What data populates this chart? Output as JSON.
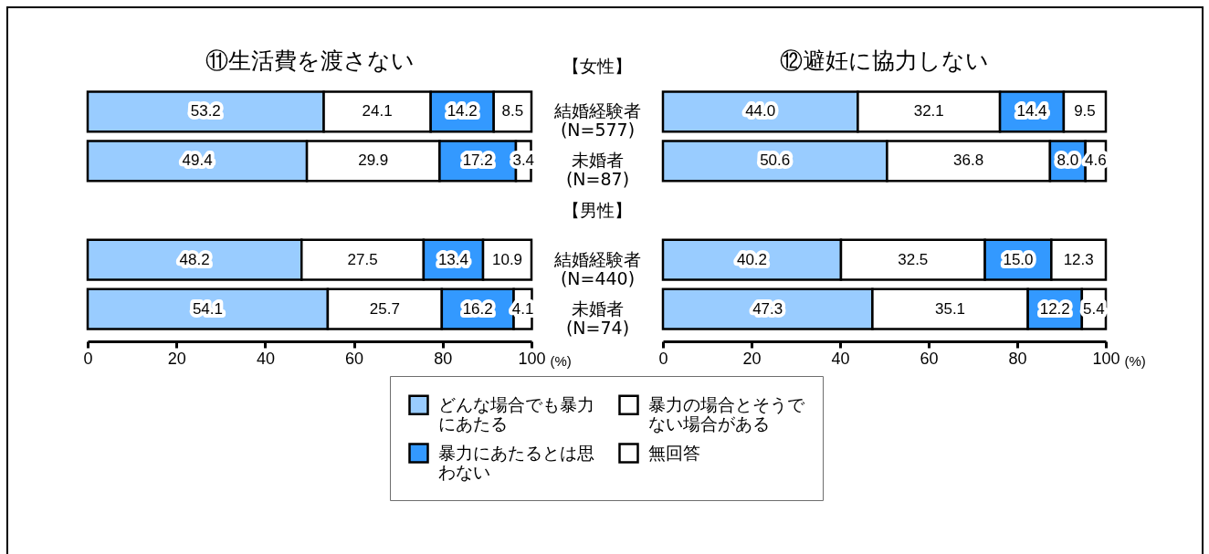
{
  "chart_data": [
    {
      "type": "bar",
      "orientation": "horizontal",
      "stacked": true,
      "title": "⑪生活費を渡さない",
      "categories": [
        "結婚経験者\n(N=577)",
        "未婚者\n(N=87)",
        null,
        "結婚経験者\n(N=440)",
        "未婚者\n(N=74)"
      ],
      "series": [
        {
          "name": "どんな場合でも暴力にあたる",
          "color": "#99ccff",
          "values": [
            53.2,
            49.4,
            null,
            48.2,
            54.1
          ],
          "value_labels": [
            "53.2",
            "49.4",
            null,
            "48.2",
            "54.1"
          ]
        },
        {
          "name": "暴力の場合とそうでない場合がある",
          "color": "#ffffff",
          "values": [
            24.1,
            29.9,
            null,
            27.5,
            25.7
          ],
          "value_labels": [
            "24.1",
            "29.9",
            null,
            "27.5",
            "25.7"
          ]
        },
        {
          "name": "暴力にあたるとは思わない",
          "color": "#3399ff",
          "values": [
            14.2,
            17.2,
            null,
            13.4,
            16.2
          ],
          "value_labels": [
            "14.2",
            "17.2",
            null,
            "13.4",
            "16.2"
          ]
        },
        {
          "name": "無回答",
          "color": "#ffffff",
          "values": [
            8.5,
            3.4,
            null,
            10.9,
            4.1
          ],
          "value_labels": [
            "8.5",
            "3.4",
            null,
            "10.9",
            "4.1"
          ]
        }
      ],
      "xlim": [
        0,
        100
      ],
      "xticks": [
        0,
        20,
        40,
        60,
        80,
        100
      ],
      "xlabel": "(%)",
      "tick_labels": "x",
      "legend": "bottom"
    },
    {
      "type": "bar",
      "orientation": "horizontal",
      "stacked": true,
      "title": "⑫避妊に協力しない",
      "categories": [
        "結婚経験者\n(N=577)",
        "未婚者\n(N=87)",
        null,
        "結婚経験者\n(N=440)",
        "未婚者\n(N=74)"
      ],
      "series": [
        {
          "name": "どんな場合でも暴力にあたる",
          "color": "#99ccff",
          "values": [
            44.0,
            50.6,
            null,
            40.2,
            47.3
          ],
          "value_labels": [
            "44.0",
            "50.6",
            null,
            "40.2",
            "47.3"
          ]
        },
        {
          "name": "暴力の場合とそうでない場合がある",
          "color": "#ffffff",
          "values": [
            32.1,
            36.8,
            null,
            32.5,
            35.1
          ],
          "value_labels": [
            "32.1",
            "36.8",
            null,
            "32.5",
            "35.1"
          ]
        },
        {
          "name": "暴力にあたるとは思わない",
          "color": "#3399ff",
          "values": [
            14.4,
            8.0,
            null,
            15.0,
            12.2
          ],
          "value_labels": [
            "14.4",
            "8.0",
            null,
            "15.0",
            "12.2"
          ]
        },
        {
          "name": "無回答",
          "color": "#ffffff",
          "values": [
            9.5,
            4.6,
            null,
            12.3,
            5.4
          ],
          "value_labels": [
            "9.5",
            "4.6",
            null,
            "12.3",
            "5.4"
          ]
        }
      ],
      "xlim": [
        0,
        100
      ],
      "xticks": [
        0,
        20,
        40,
        60,
        80,
        100
      ],
      "xlabel": "(%)",
      "annotations": [
        "【女性】",
        "【男性】"
      ],
      "legend": "bottom"
    }
  ]
}
